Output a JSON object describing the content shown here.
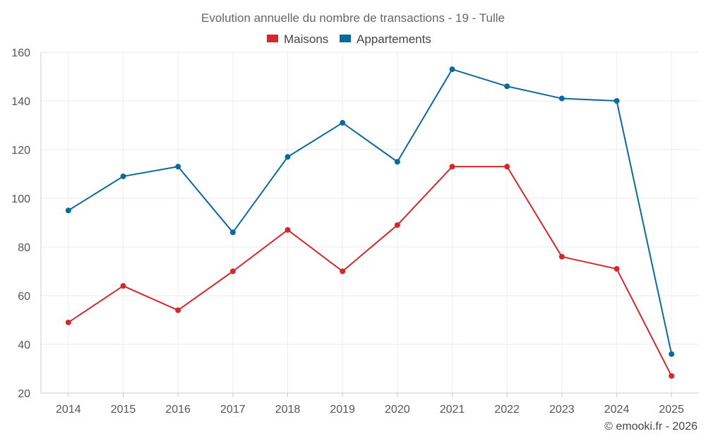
{
  "chart_data": {
    "type": "line",
    "title": "Evolution annuelle du nombre de transactions - 19 - Tulle",
    "categories": [
      "2014",
      "2015",
      "2016",
      "2017",
      "2018",
      "2019",
      "2020",
      "2021",
      "2022",
      "2023",
      "2024",
      "2025"
    ],
    "series": [
      {
        "name": "Maisons",
        "color": "#d3292d",
        "values": [
          49,
          64,
          54,
          70,
          87,
          70,
          89,
          113,
          113,
          76,
          71,
          27
        ]
      },
      {
        "name": "Appartements",
        "color": "#0b6a9c",
        "values": [
          95,
          109,
          113,
          86,
          117,
          131,
          115,
          153,
          146,
          141,
          140,
          36
        ]
      }
    ],
    "ylim": [
      20,
      160
    ],
    "yticks": [
      20,
      40,
      60,
      80,
      100,
      120,
      140,
      160
    ],
    "xlabel": "",
    "ylabel": "",
    "grid": true,
    "legend_position": "top-center"
  },
  "credit": "© emooki.fr - 2026"
}
